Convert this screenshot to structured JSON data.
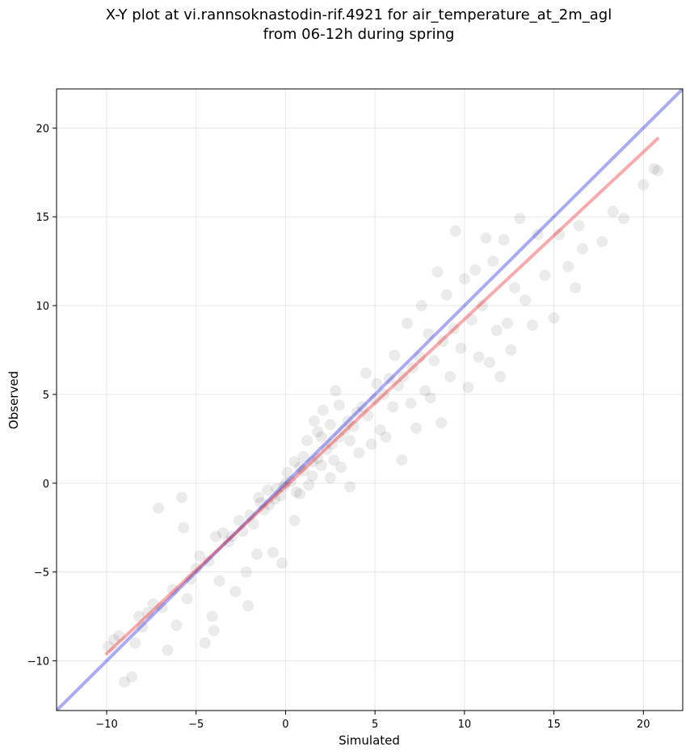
{
  "chart_data": {
    "type": "scatter",
    "title_line1": "X-Y plot at vi.rannsoknastodin-rif.4921 for air_temperature_at_2m_agl",
    "title_line2": "from 06-12h during spring",
    "xlabel": "Simulated",
    "ylabel": "Observed",
    "xlim": [
      -12.8,
      22.2
    ],
    "ylim": [
      -12.8,
      22.2
    ],
    "xticks": [
      -10,
      -5,
      0,
      5,
      10,
      15,
      20
    ],
    "yticks": [
      -10,
      -5,
      0,
      5,
      10,
      15,
      20
    ],
    "tick_labels": [
      "−10",
      "−5",
      "0",
      "5",
      "10",
      "15",
      "20"
    ],
    "grid": true,
    "points": {
      "color": "#000000",
      "opacity": 0.08,
      "values": [
        [
          -9.9,
          -9.2
        ],
        [
          -9.6,
          -8.8
        ],
        [
          -9.3,
          -8.6
        ],
        [
          -9.0,
          -11.2
        ],
        [
          -8.6,
          -10.9
        ],
        [
          -8.4,
          -9.0
        ],
        [
          -8.2,
          -7.5
        ],
        [
          -8.0,
          -8.1
        ],
        [
          -7.7,
          -7.3
        ],
        [
          -7.4,
          -6.8
        ],
        [
          -7.1,
          -1.4
        ],
        [
          -6.9,
          -7.0
        ],
        [
          -6.6,
          -9.4
        ],
        [
          -6.3,
          -6.0
        ],
        [
          -6.1,
          -8.0
        ],
        [
          -5.8,
          -0.8
        ],
        [
          -5.7,
          -2.5
        ],
        [
          -5.5,
          -6.5
        ],
        [
          -5.3,
          -5.4
        ],
        [
          -5.0,
          -4.8
        ],
        [
          -4.8,
          -4.1
        ],
        [
          -4.5,
          -9.0
        ],
        [
          -4.3,
          -4.4
        ],
        [
          -4.1,
          -7.5
        ],
        [
          -4.0,
          -8.3
        ],
        [
          -3.9,
          -3.0
        ],
        [
          -3.7,
          -5.5
        ],
        [
          -3.5,
          -2.8
        ],
        [
          -3.2,
          -3.3
        ],
        [
          -3.0,
          -3.0
        ],
        [
          -2.8,
          -6.1
        ],
        [
          -2.6,
          -2.1
        ],
        [
          -2.4,
          -2.7
        ],
        [
          -2.2,
          -5.0
        ],
        [
          -2.1,
          -6.9
        ],
        [
          -2.0,
          -1.8
        ],
        [
          -1.8,
          -2.3
        ],
        [
          -1.6,
          -4.0
        ],
        [
          -1.4,
          -1.1
        ],
        [
          -1.2,
          -1.5
        ],
        [
          -1.0,
          -0.4
        ],
        [
          -0.9,
          -1.2
        ],
        [
          -0.7,
          -3.9
        ],
        [
          -0.5,
          -0.3
        ],
        [
          -0.3,
          -0.7
        ],
        [
          -0.2,
          -4.5
        ],
        [
          -0.1,
          -0.2
        ],
        [
          0.1,
          0.6
        ],
        [
          0.3,
          0.1
        ],
        [
          0.5,
          -2.1
        ],
        [
          0.6,
          -0.5
        ],
        [
          0.8,
          0.9
        ],
        [
          1.0,
          0.7
        ],
        [
          1.2,
          2.4
        ],
        [
          1.3,
          -0.1
        ],
        [
          1.5,
          1.2
        ],
        [
          1.6,
          3.5
        ],
        [
          1.8,
          1.4
        ],
        [
          2.0,
          1.0
        ],
        [
          2.1,
          4.1
        ],
        [
          2.3,
          1.9
        ],
        [
          2.5,
          0.3
        ],
        [
          2.6,
          2.2
        ],
        [
          2.8,
          5.2
        ],
        [
          3.0,
          2.6
        ],
        [
          3.1,
          0.9
        ],
        [
          3.3,
          3.0
        ],
        [
          3.5,
          3.5
        ],
        [
          3.6,
          -0.2
        ],
        [
          3.8,
          3.2
        ],
        [
          4.0,
          4.0
        ],
        [
          4.1,
          1.7
        ],
        [
          4.3,
          4.3
        ],
        [
          4.5,
          6.2
        ],
        [
          4.6,
          3.8
        ],
        [
          4.8,
          2.2
        ],
        [
          5.0,
          4.7
        ],
        [
          5.1,
          5.6
        ],
        [
          5.3,
          3.0
        ],
        [
          5.5,
          5.0
        ],
        [
          5.6,
          2.6
        ],
        [
          5.8,
          5.9
        ],
        [
          6.0,
          4.3
        ],
        [
          6.1,
          7.2
        ],
        [
          6.3,
          5.5
        ],
        [
          6.5,
          1.3
        ],
        [
          6.6,
          6.0
        ],
        [
          6.8,
          9.0
        ],
        [
          7.0,
          4.5
        ],
        [
          7.1,
          6.5
        ],
        [
          7.3,
          3.1
        ],
        [
          7.5,
          7.1
        ],
        [
          7.6,
          10.0
        ],
        [
          7.8,
          5.2
        ],
        [
          8.0,
          8.4
        ],
        [
          8.1,
          4.8
        ],
        [
          8.3,
          6.9
        ],
        [
          8.5,
          11.9
        ],
        [
          8.7,
          3.4
        ],
        [
          8.8,
          8.0
        ],
        [
          9.0,
          10.6
        ],
        [
          9.2,
          6.0
        ],
        [
          9.4,
          8.7
        ],
        [
          9.5,
          14.2
        ],
        [
          9.8,
          7.6
        ],
        [
          10.0,
          11.5
        ],
        [
          10.2,
          5.4
        ],
        [
          10.4,
          9.2
        ],
        [
          10.6,
          12.0
        ],
        [
          10.8,
          7.1
        ],
        [
          11.0,
          10.0
        ],
        [
          11.2,
          13.8
        ],
        [
          11.4,
          6.8
        ],
        [
          11.6,
          12.5
        ],
        [
          11.8,
          8.6
        ],
        [
          12.0,
          6.0
        ],
        [
          12.2,
          13.7
        ],
        [
          12.4,
          9.0
        ],
        [
          12.6,
          7.5
        ],
        [
          12.8,
          11.0
        ],
        [
          13.1,
          14.9
        ],
        [
          13.4,
          10.3
        ],
        [
          13.8,
          8.9
        ],
        [
          14.1,
          14.0
        ],
        [
          14.5,
          11.7
        ],
        [
          15.0,
          9.3
        ],
        [
          15.3,
          14.0
        ],
        [
          15.8,
          12.2
        ],
        [
          16.2,
          11.0
        ],
        [
          16.4,
          14.5
        ],
        [
          16.6,
          13.2
        ],
        [
          17.7,
          13.6
        ],
        [
          18.3,
          15.3
        ],
        [
          18.9,
          14.9
        ],
        [
          20.0,
          16.8
        ],
        [
          20.6,
          17.7
        ],
        [
          20.8,
          17.6
        ],
        [
          0.0,
          0.0
        ],
        [
          1.0,
          1.5
        ],
        [
          2.0,
          2.6
        ],
        [
          0.5,
          1.2
        ],
        [
          1.5,
          0.4
        ],
        [
          2.5,
          3.3
        ],
        [
          3.0,
          4.4
        ],
        [
          1.8,
          2.9
        ],
        [
          0.8,
          -0.6
        ],
        [
          -0.6,
          -0.9
        ],
        [
          -1.5,
          -0.8
        ],
        [
          2.7,
          1.3
        ],
        [
          3.6,
          2.4
        ]
      ]
    },
    "series": [
      {
        "name": "",
        "color": "#0000dd",
        "opacity": 0.33,
        "x": [
          -12.8,
          22.2
        ],
        "y": [
          -12.8,
          22.2
        ]
      },
      {
        "name": "",
        "color": "#ee0000",
        "opacity": 0.33,
        "x": [
          -10.0,
          20.8
        ],
        "y": [
          -9.6,
          19.4
        ]
      }
    ]
  }
}
